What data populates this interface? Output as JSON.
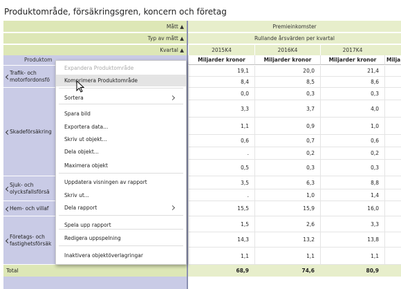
{
  "title": "Produktområde, försäkringsgren, koncern och företag",
  "header": {
    "measure": {
      "label": "Mått ▲",
      "value": "Premieinkomster"
    },
    "measure_type": {
      "label": "Typ av mått ▲",
      "value": "Rullande årsvärden per kvartal"
    },
    "quarter": {
      "label": "Kvartal ▲",
      "columns": [
        "2015K4",
        "2016K4",
        "2017K4"
      ]
    },
    "row_header": "Produktom",
    "units": [
      "Miljarder kronor",
      "Miljarder kronor",
      "Miljarder kronor",
      "Milja"
    ]
  },
  "groups": [
    {
      "label": [
        "Trafik- och",
        "motorfordonsfö"
      ],
      "rows": [
        [
          "19,1",
          "20,0",
          "21,4"
        ],
        [
          "8,4",
          "8,5",
          "8,6"
        ]
      ]
    },
    {
      "label": [
        "Skadeförsäkring"
      ],
      "rows": [
        [
          "0,0",
          "0,3",
          "0,3"
        ],
        [
          "3,3",
          "3,7",
          "4,0"
        ],
        [
          "1,1",
          "0,9",
          "1,0"
        ],
        [
          "0,6",
          "0,7",
          "0,6"
        ],
        [
          ".",
          "0,2",
          "0,2"
        ],
        [
          "0,5",
          "0,3",
          "0,3"
        ]
      ]
    },
    {
      "label": [
        "Sjuk- och",
        "olycksfallsförsä"
      ],
      "rows": [
        [
          "3,5",
          "6,3",
          "8,8"
        ],
        [
          ".",
          "1,0",
          "1,4"
        ]
      ]
    },
    {
      "label": [
        "Hem- och villaf"
      ],
      "rows": [
        [
          "15,5",
          "15,9",
          "16,0"
        ]
      ]
    },
    {
      "label": [
        "Företags- och",
        "fastighetsförsäk"
      ],
      "rows": [
        [
          "1,5",
          "2,6",
          "3,3"
        ],
        [
          "14,3",
          "13,2",
          "13,8"
        ],
        [
          "1,1",
          "1,1",
          "1,1"
        ]
      ]
    }
  ],
  "total": {
    "label": "Total",
    "values": [
      "68,9",
      "74,6",
      "80,9"
    ]
  },
  "menu": [
    {
      "label": "Expandera Produktområde",
      "disabled": true
    },
    {
      "label": "Komprimera Produktområde",
      "highlighted": true
    },
    {
      "label": "Sortera",
      "submenu": true
    },
    {
      "label": "Spara bild"
    },
    {
      "label": "Exportera data..."
    },
    {
      "label": "Skriv ut objekt..."
    },
    {
      "label": "Dela objekt..."
    },
    {
      "label": "Maximera objekt"
    },
    {
      "label": "Uppdatera visningen av rapport"
    },
    {
      "label": "Skriv ut..."
    },
    {
      "label": "Dela rapport",
      "submenu": true
    },
    {
      "label": "Spela upp rapport"
    },
    {
      "label": "Redigera uppspelning"
    },
    {
      "label": "Inaktivera objektöverlagringar"
    }
  ]
}
